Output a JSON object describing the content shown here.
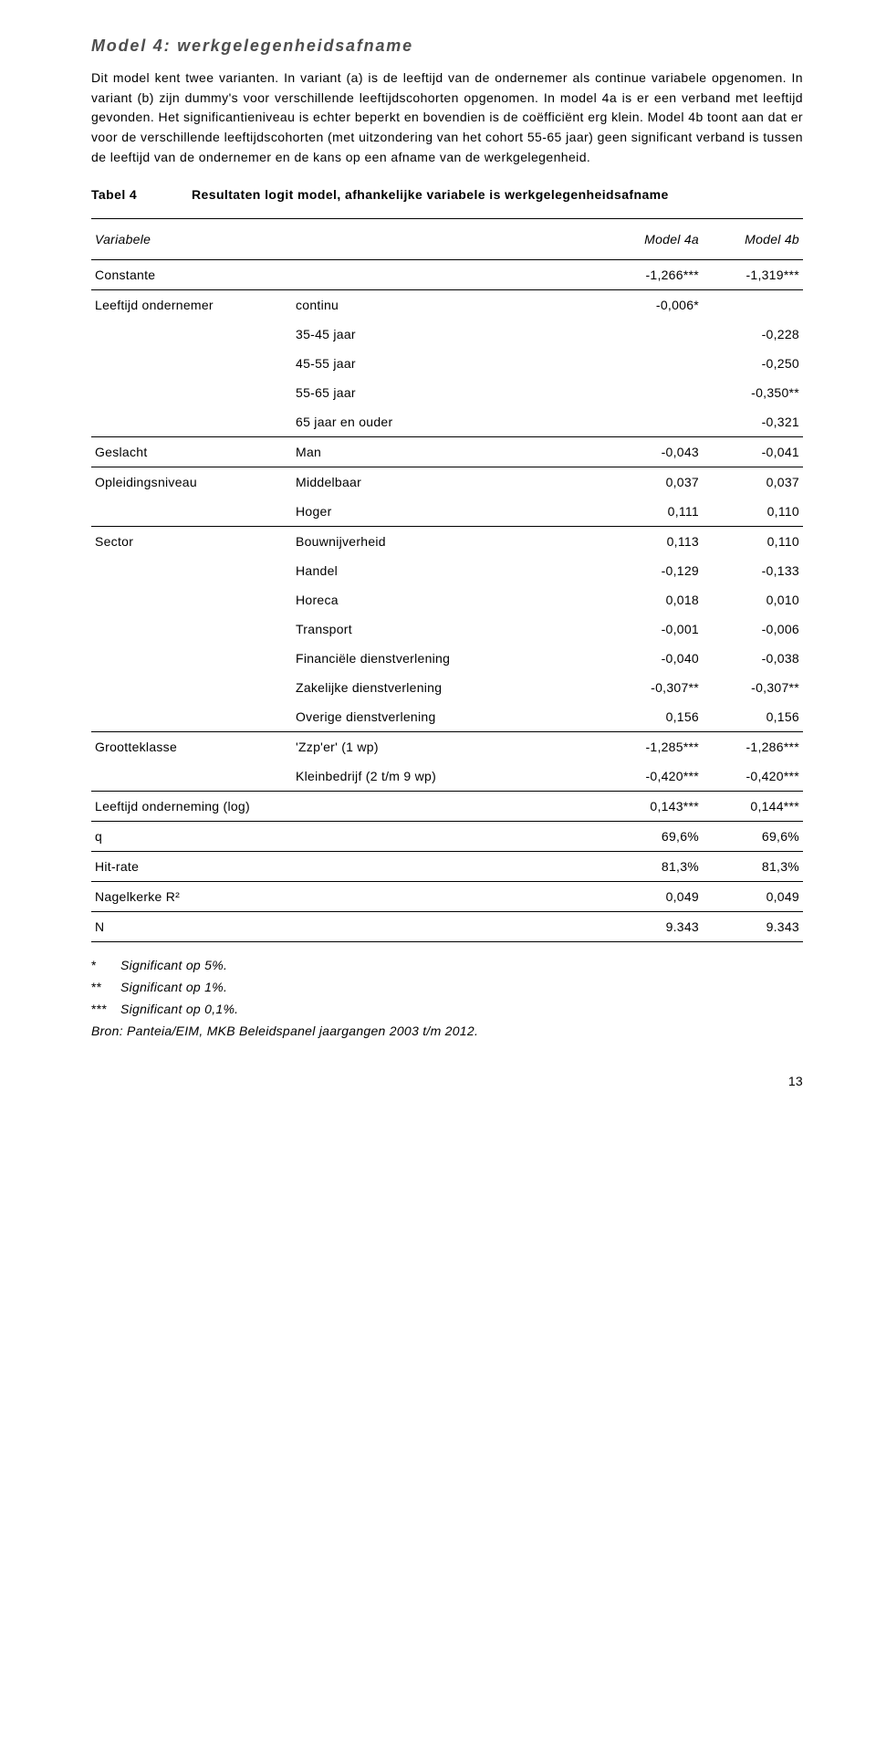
{
  "title": "Model 4: werkgelegenheidsafname",
  "paragraph": "Dit model kent twee varianten. In variant (a) is de leeftijd van de ondernemer als continue variabele opgenomen. In variant (b) zijn dummy's voor verschillende leeftijdscohorten opgenomen. In model 4a is er een verband met leeftijd gevonden. Het significantieniveau is echter beperkt en bovendien is de coëfficiënt erg klein. Model 4b toont aan dat er voor de verschillende leeftijdscohorten (met uitzondering van het cohort 55-65 jaar) geen significant verband is tussen de leeftijd van de ondernemer en de kans op een afname van de werkgelegenheid.",
  "caption_label": "Tabel 4",
  "caption_text": "Resultaten logit model, afhankelijke variabele is werkgelegenheidsafname",
  "head_variabele": "Variabele",
  "head_m4a": "Model 4a",
  "head_m4b": "Model 4b",
  "rows": [
    {
      "var": "Constante",
      "sub": "",
      "a": "-1,266***",
      "b": "-1,319***",
      "rule": true
    },
    {
      "var": "Leeftijd ondernemer",
      "sub": "continu",
      "a": "-0,006*",
      "b": ""
    },
    {
      "var": "",
      "sub": "35-45 jaar",
      "a": "",
      "b": "-0,228"
    },
    {
      "var": "",
      "sub": "45-55 jaar",
      "a": "",
      "b": "-0,250"
    },
    {
      "var": "",
      "sub": "55-65 jaar",
      "a": "",
      "b": "-0,350**"
    },
    {
      "var": "",
      "sub": "65 jaar en ouder",
      "a": "",
      "b": "-0,321",
      "rule": true
    },
    {
      "var": "Geslacht",
      "sub": "Man",
      "a": "-0,043",
      "b": "-0,041",
      "rule": true
    },
    {
      "var": "Opleidingsniveau",
      "sub": "Middelbaar",
      "a": "0,037",
      "b": "0,037"
    },
    {
      "var": "",
      "sub": "Hoger",
      "a": "0,111",
      "b": "0,110",
      "rule": true
    },
    {
      "var": "Sector",
      "sub": "Bouwnijverheid",
      "a": "0,113",
      "b": "0,110"
    },
    {
      "var": "",
      "sub": "Handel",
      "a": "-0,129",
      "b": "-0,133"
    },
    {
      "var": "",
      "sub": "Horeca",
      "a": "0,018",
      "b": "0,010"
    },
    {
      "var": "",
      "sub": "Transport",
      "a": "-0,001",
      "b": "-0,006"
    },
    {
      "var": "",
      "sub": "Financiële dienstverlening",
      "a": "-0,040",
      "b": "-0,038"
    },
    {
      "var": "",
      "sub": "Zakelijke dienstverlening",
      "a": "-0,307**",
      "b": "-0,307**"
    },
    {
      "var": "",
      "sub": "Overige dienstverlening",
      "a": "0,156",
      "b": "0,156",
      "rule": true
    },
    {
      "var": "Grootteklasse",
      "sub": "'Zzp'er' (1 wp)",
      "a": "-1,285***",
      "b": "-1,286***"
    },
    {
      "var": "",
      "sub": "Kleinbedrijf (2 t/m 9 wp)",
      "a": "-0,420***",
      "b": "-0,420***",
      "rule": true
    },
    {
      "var": "Leeftijd onderneming (log)",
      "sub": "",
      "a": "0,143***",
      "b": "0,144***",
      "rule": true,
      "span": true
    },
    {
      "var": "q",
      "sub": "",
      "a": "69,6%",
      "b": "69,6%",
      "rule": true,
      "span": true
    },
    {
      "var": "Hit-rate",
      "sub": "",
      "a": "81,3%",
      "b": "81,3%",
      "rule": true,
      "span": true
    },
    {
      "var": "Nagelkerke R²",
      "sub": "",
      "a": "0,049",
      "b": "0,049",
      "rule": true,
      "span": true
    },
    {
      "var": "N",
      "sub": "",
      "a": "9.343",
      "b": "9.343",
      "rule": true,
      "span": true
    }
  ],
  "notes": {
    "n1_star": "*",
    "n1": "Significant op 5%.",
    "n2_star": "**",
    "n2": "Significant op 1%.",
    "n3_star": "***",
    "n3": "Significant op 0,1%.",
    "source": "Bron: Panteia/EIM, MKB Beleidspanel jaargangen 2003 t/m 2012."
  },
  "page_number": "13"
}
